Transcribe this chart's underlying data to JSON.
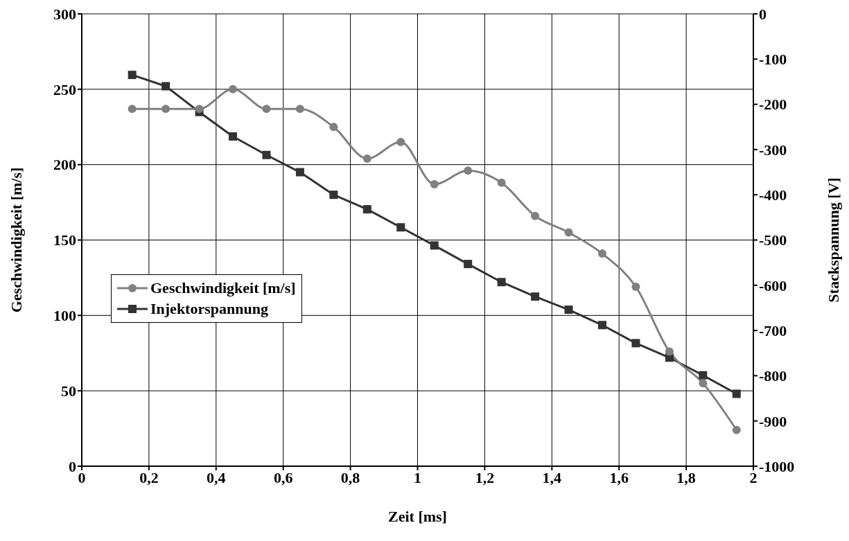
{
  "chart_data": {
    "type": "line",
    "xlabel": "Zeit [ms]",
    "ylabel": "Geschwindigkeit [m/s]",
    "y2label": "Stackspannung [V]",
    "x": [
      0.15,
      0.25,
      0.35,
      0.45,
      0.55,
      0.65,
      0.75,
      0.85,
      0.95,
      1.05,
      1.15,
      1.25,
      1.35,
      1.45,
      1.55,
      1.65,
      1.75,
      1.85,
      1.95
    ],
    "series": [
      {
        "name": "Geschwindigkeit [m/s]",
        "color": "#808080",
        "marker": "circle",
        "values": [
          237,
          237,
          237,
          250,
          237,
          237,
          225,
          204,
          215,
          187,
          196,
          188,
          166,
          155,
          141,
          119,
          76,
          55,
          24
        ]
      },
      {
        "name": "Injektorspannung",
        "color": "#333333",
        "marker": "square",
        "axis": "y2",
        "values": [
          -135,
          -160,
          -217,
          -271,
          -312,
          -350,
          -400,
          -432,
          -472,
          -512,
          -553,
          -593,
          -625,
          -654,
          -688,
          -728,
          -760,
          -799,
          -840
        ]
      }
    ],
    "xlim": [
      0,
      2
    ],
    "xticks": [
      0,
      {
        "value": 0.2,
        "label": "0,2"
      },
      {
        "value": 0.4,
        "label": "0,4"
      },
      {
        "value": 0.6,
        "label": "0,6"
      },
      {
        "value": 0.8,
        "label": "0,8"
      },
      1,
      {
        "value": 1.2,
        "label": "1,2"
      },
      {
        "value": 1.4,
        "label": "1,4"
      },
      {
        "value": 1.6,
        "label": "1,6"
      },
      {
        "value": 1.8,
        "label": "1,8"
      },
      2
    ],
    "ylim": [
      0,
      300
    ],
    "yticks": [
      0,
      50,
      100,
      150,
      200,
      250,
      300
    ],
    "y2lim": [
      -1000,
      0
    ],
    "y2ticks": [
      -1000,
      -900,
      -800,
      -700,
      -600,
      -500,
      -400,
      -300,
      -200,
      -100,
      0
    ],
    "grid": true,
    "legend": "left",
    "line_style": "solid"
  }
}
